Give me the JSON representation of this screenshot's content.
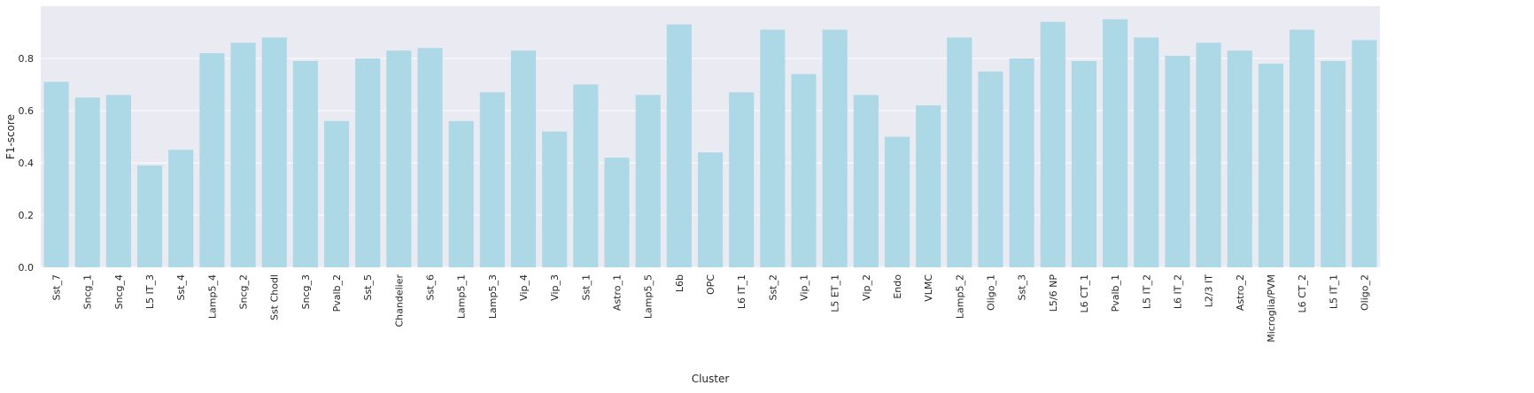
{
  "chart_data": {
    "type": "bar",
    "xlabel": "Cluster",
    "ylabel": "F1-score",
    "ylim": [
      0,
      1.0
    ],
    "yticks": [
      "0.0",
      "0.2",
      "0.4",
      "0.6",
      "0.8"
    ],
    "grid": true,
    "bar_color": "#add8e6",
    "background_color": "#eaeaf2",
    "categories": [
      "Sst_7",
      "Sncg_1",
      "Sncg_4",
      "L5 IT_3",
      "Sst_4",
      "Lamp5_4",
      "Sncg_2",
      "Sst Chodl",
      "Sncg_3",
      "Pvalb_2",
      "Sst_5",
      "Chandelier",
      "Sst_6",
      "Lamp5_1",
      "Lamp5_3",
      "Vip_4",
      "Vip_3",
      "Sst_1",
      "Astro_1",
      "Lamp5_5",
      "L6b",
      "OPC",
      "L6 IT_1",
      "Sst_2",
      "Vip_1",
      "L5 ET_1",
      "Vip_2",
      "Endo",
      "VLMC",
      "Lamp5_2",
      "Oligo_1",
      "Sst_3",
      "L5/6 NP",
      "L6 CT_1",
      "Pvalb_1",
      "L5 IT_2",
      "L6 IT_2",
      "L2/3 IT",
      "Astro_2",
      "Microglia/PVM",
      "L6 CT_2",
      "L5 IT_1",
      "Oligo_2"
    ],
    "values": [
      0.71,
      0.65,
      0.66,
      0.39,
      0.45,
      0.82,
      0.86,
      0.88,
      0.79,
      0.56,
      0.8,
      0.83,
      0.84,
      0.56,
      0.67,
      0.83,
      0.52,
      0.7,
      0.42,
      0.66,
      0.93,
      0.44,
      0.67,
      0.91,
      0.74,
      0.91,
      0.66,
      0.5,
      0.62,
      0.88,
      0.75,
      0.8,
      0.94,
      0.79,
      0.95,
      0.88,
      0.81,
      0.86,
      0.83,
      0.78,
      0.91,
      0.79,
      0.87
    ]
  }
}
